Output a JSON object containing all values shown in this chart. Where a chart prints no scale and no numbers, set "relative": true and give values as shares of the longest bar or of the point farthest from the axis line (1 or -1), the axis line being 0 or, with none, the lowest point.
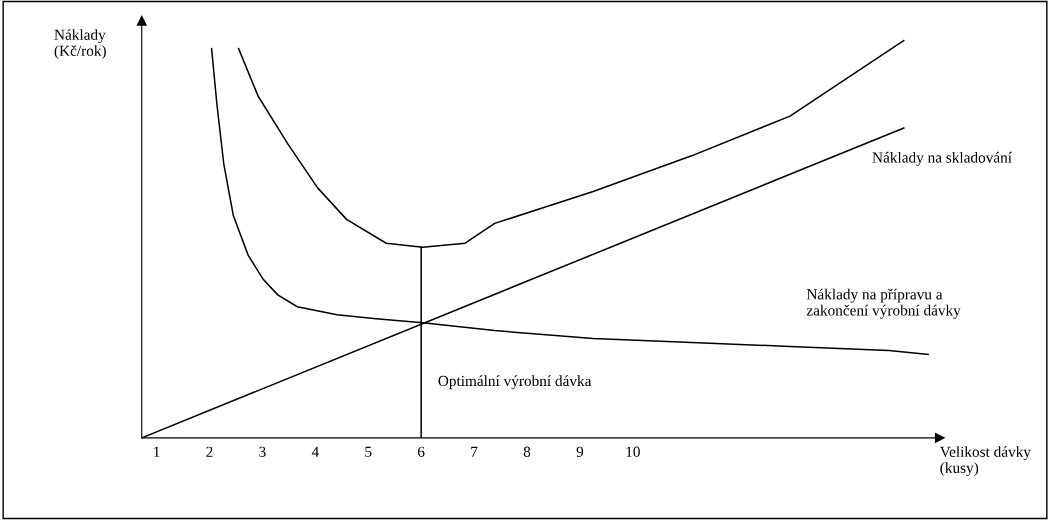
{
  "chart_data": {
    "type": "line",
    "relative": true,
    "xlabel": "Velikost dávky\n(kusy)",
    "ylabel": "Náklady\n(Kč/rok)",
    "xlim": [
      0.72,
      15.8
    ],
    "xticks": [
      1,
      2,
      3,
      4,
      5,
      6,
      7,
      8,
      9,
      10
    ],
    "tick_labels": "x",
    "grid": false,
    "legend": false,
    "marker": "none",
    "line_style": "solid",
    "series": [
      {
        "name": "Náklady na skladování",
        "color": "#000000",
        "x": [
          0.72,
          15.12
        ],
        "values": [
          0,
          0.78
        ]
      },
      {
        "name": "Náklady na přípravu a\nzakončení výrobní dávky",
        "color": "#000000",
        "x": [
          2.04,
          2.14,
          2.27,
          2.45,
          2.73,
          3.01,
          3.29,
          3.66,
          4.41,
          5.15,
          6.03,
          7.39,
          9.25,
          11.11,
          12.97,
          14.84,
          15.58
        ],
        "values": [
          0.98,
          0.84,
          0.69,
          0.56,
          0.46,
          0.4,
          0.36,
          0.33,
          0.31,
          0.3,
          0.29,
          0.27,
          0.25,
          0.24,
          0.23,
          0.22,
          0.21
        ]
      },
      {
        "color": "#000000",
        "x": [
          2.55,
          2.92,
          3.48,
          4.04,
          4.59,
          5.34,
          6.03,
          6.83,
          7.39,
          9.25,
          11.11,
          12.97,
          15.12
        ],
        "values": [
          0.98,
          0.86,
          0.74,
          0.63,
          0.55,
          0.49,
          0.48,
          0.49,
          0.54,
          0.62,
          0.71,
          0.81,
          1.0
        ]
      },
      {
        "color": "#000000",
        "x": [
          6,
          6
        ],
        "values": [
          0,
          0.48
        ]
      }
    ],
    "annotations": [
      {
        "text": "Optimální výrobní dávka",
        "x": 6,
        "y": 0.14
      }
    ]
  }
}
